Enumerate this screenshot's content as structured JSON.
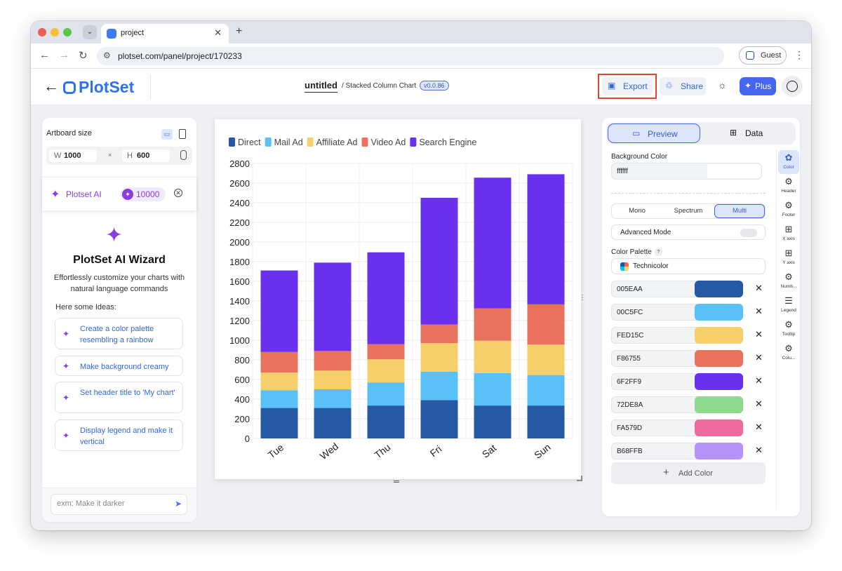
{
  "browser": {
    "tab_title": "project",
    "url": "plotset.com/panel/project/170233",
    "profile_label": "Guest"
  },
  "header": {
    "logo": "PlotSet",
    "doc_title": "untitled",
    "doc_subtitle": "/ Stacked Column Chart",
    "version": "v0.0.86",
    "export_label": "Export",
    "share_label": "Share",
    "plus_label": "Plus"
  },
  "left": {
    "artboard_label": "Artboard size",
    "width_key": "W",
    "width": "1000",
    "times": "×",
    "height_key": "H",
    "height": "600",
    "ai_label": "Plotset AI",
    "ai_credits": "10000",
    "wizard_title": "PlotSet AI Wizard",
    "wizard_desc": "Effortlessly customize your charts with natural language commands",
    "ideas_label": "Here some Ideas:",
    "ideas": [
      "Create a color palette resembling a rainbow",
      "Make background creamy",
      "Set header title to 'My chart'",
      "Display legend and make it vertical"
    ],
    "prompt_placeholder": "exm: Make it darker"
  },
  "chart_data": {
    "type": "bar",
    "stacked": true,
    "categories": [
      "Tue",
      "Wed",
      "Thu",
      "Fri",
      "Sat",
      "Sun"
    ],
    "series": [
      {
        "name": "Direct",
        "color": "#2558A5",
        "values": [
          310,
          310,
          335,
          390,
          335,
          335
        ]
      },
      {
        "name": "Mail Ad",
        "color": "#58C0F5",
        "values": [
          180,
          190,
          235,
          290,
          330,
          310
        ]
      },
      {
        "name": "Affiliate Ad",
        "color": "#F5D06A",
        "values": [
          180,
          190,
          235,
          290,
          330,
          310
        ]
      },
      {
        "name": "Video Ad",
        "color": "#E8725D",
        "values": [
          210,
          200,
          155,
          190,
          330,
          410
        ]
      },
      {
        "name": "Search Engine",
        "color": "#6930EE",
        "values": [
          830,
          900,
          935,
          1290,
          1330,
          1325
        ]
      }
    ],
    "ylim": [
      0,
      2800
    ],
    "yticks": [
      0,
      200,
      400,
      600,
      800,
      1000,
      1200,
      1400,
      1600,
      1800,
      2000,
      2200,
      2400,
      2600,
      2800
    ],
    "grid": true,
    "legend": "top-left"
  },
  "right": {
    "preview_tab": "Preview",
    "data_tab": "Data",
    "bg_label": "Background Color",
    "bg_value": "ffffff",
    "modes": [
      "Mono",
      "Spectrum",
      "Multi"
    ],
    "active_mode": "Multi",
    "advanced_label": "Advanced Mode",
    "palette_label": "Color Palette",
    "help": "?",
    "palette_name": "Technicolor",
    "colors": [
      {
        "hex": "005EAA",
        "swatch": "#2558A5"
      },
      {
        "hex": "00C5FC",
        "swatch": "#58C0F5"
      },
      {
        "hex": "FED15C",
        "swatch": "#F5D06A"
      },
      {
        "hex": "F86755",
        "swatch": "#E8725D"
      },
      {
        "hex": "6F2FF9",
        "swatch": "#6930EE"
      },
      {
        "hex": "72DE8A",
        "swatch": "#8DDA8F"
      },
      {
        "hex": "FA579D",
        "swatch": "#EE6A9F"
      },
      {
        "hex": "B68FFB",
        "swatch": "#B592F5"
      }
    ],
    "add_color_label": "Add Color",
    "rail": [
      "Color",
      "Header",
      "Footer",
      "X axis",
      "Y axis",
      "Numb...",
      "Legend",
      "Tooltip",
      "Colu..."
    ]
  }
}
